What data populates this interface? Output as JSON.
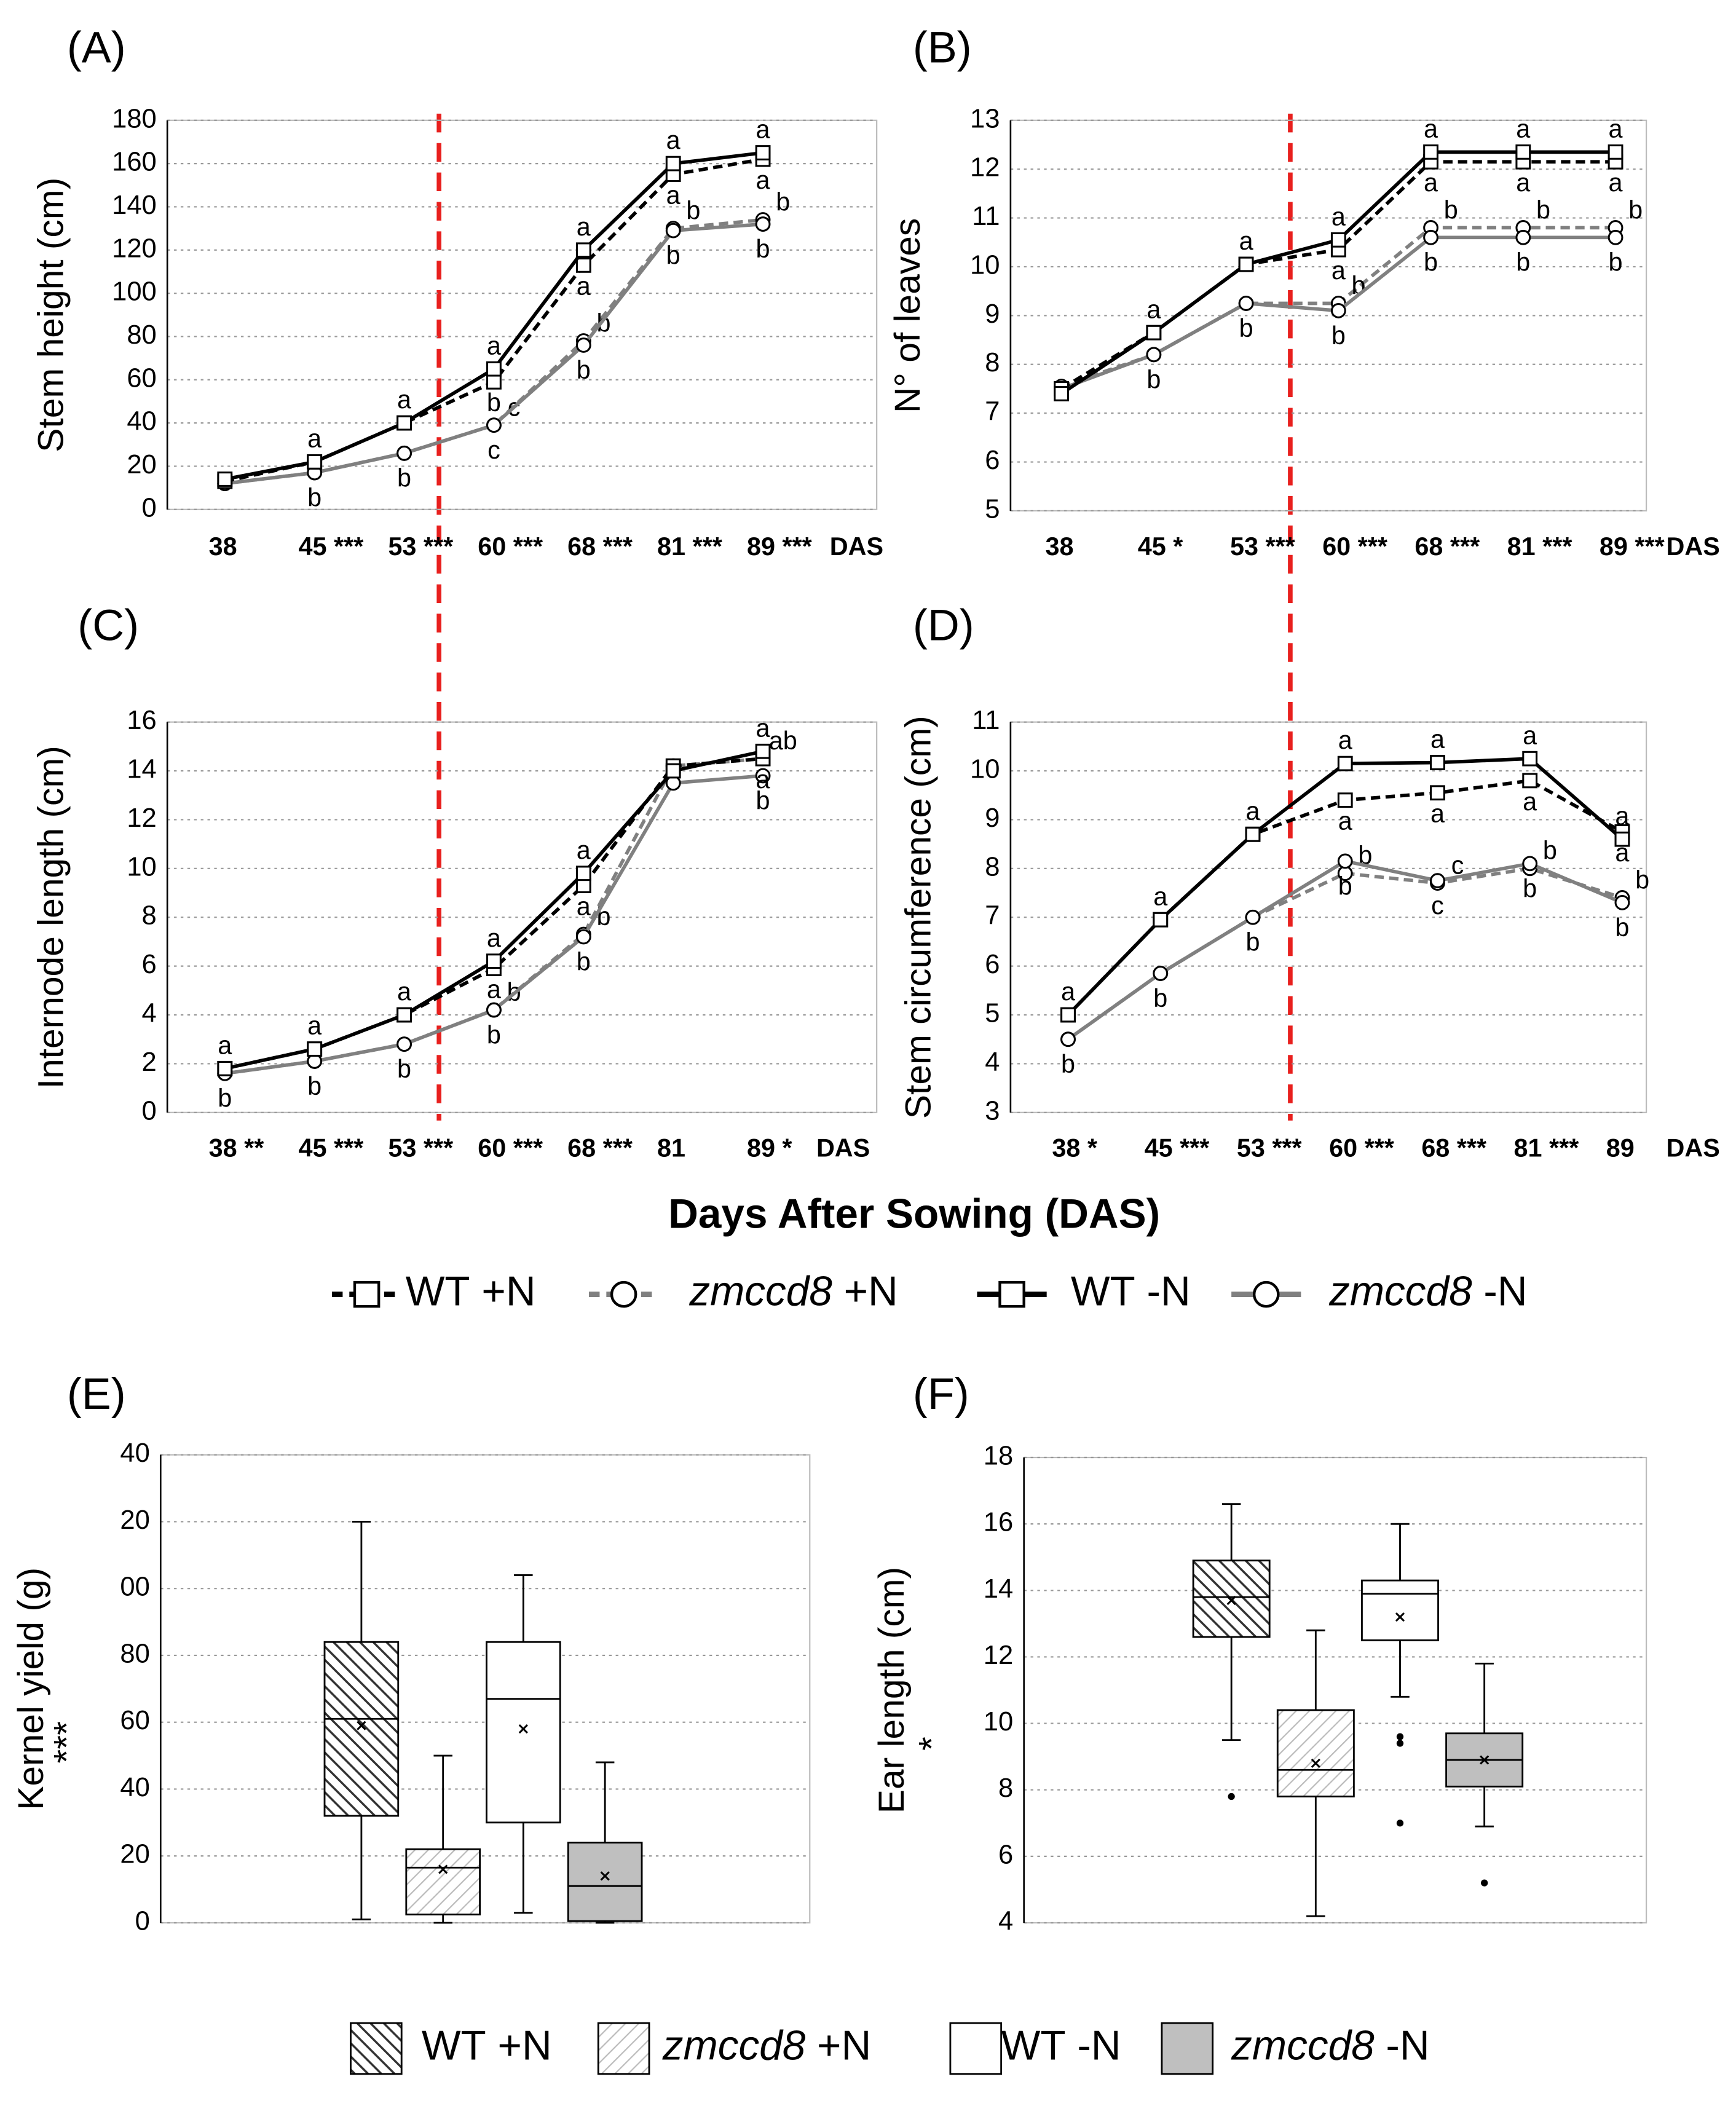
{
  "common_xlabel": "Days After Sowing (DAS)",
  "line_legend": [
    {
      "genotype": "WT",
      "treatment": "+N",
      "italic": false,
      "color": "#000000",
      "dashed": true,
      "marker": "square"
    },
    {
      "genotype": "zmccd8",
      "treatment": "+N",
      "italic": true,
      "color": "#808080",
      "dashed": true,
      "marker": "circle"
    },
    {
      "genotype": "WT",
      "treatment": "-N",
      "italic": false,
      "color": "#000000",
      "dashed": false,
      "marker": "square"
    },
    {
      "genotype": "zmccd8",
      "treatment": "-N",
      "italic": true,
      "color": "#808080",
      "dashed": false,
      "marker": "circle"
    }
  ],
  "box_legend": [
    {
      "genotype": "WT",
      "treatment": "+N",
      "italic": false,
      "fill": "hatch-dark"
    },
    {
      "genotype": "zmccd8",
      "treatment": "+N",
      "italic": true,
      "fill": "hatch-light"
    },
    {
      "genotype": "WT",
      "treatment": "-N",
      "italic": false,
      "fill": "white"
    },
    {
      "genotype": "zmccd8",
      "treatment": "-N",
      "italic": true,
      "fill": "gray"
    }
  ],
  "chart_data": [
    {
      "type": "line",
      "title": "(A)",
      "ylabel": "Stem height (cm)",
      "xlabel": "DAS",
      "categories": [
        "38",
        "45 ***",
        "53 ***",
        "60 ***",
        "68 ***",
        "81 ***",
        "89 ***"
      ],
      "ylim": [
        0,
        180
      ],
      "yticks": [
        0,
        20,
        40,
        60,
        80,
        100,
        120,
        140,
        160,
        180
      ],
      "grid": true,
      "series": [
        {
          "values": [
            13,
            22,
            40,
            59,
            113,
            155,
            162
          ],
          "letters": [
            null,
            null,
            null,
            "b",
            "a",
            "a",
            "a"
          ]
        },
        {
          "values": [
            12,
            17,
            26,
            39,
            78,
            130,
            134
          ],
          "letters": [
            null,
            null,
            null,
            "c",
            "b",
            "b",
            "b"
          ]
        },
        {
          "values": [
            14,
            22,
            40,
            65,
            120,
            160,
            165
          ],
          "letters": [
            null,
            "a",
            "a",
            "a",
            "a",
            "a",
            "a"
          ]
        },
        {
          "values": [
            12,
            17,
            26,
            39,
            76,
            129,
            132
          ],
          "letters": [
            null,
            "b",
            "b",
            "c",
            "b",
            "b",
            "b"
          ]
        }
      ]
    },
    {
      "type": "line",
      "title": "(B)",
      "ylabel": "N° of leaves",
      "xlabel": "DAS",
      "categories": [
        "38",
        "45 *",
        "53 ***",
        "60 ***",
        "68 ***",
        "81 ***",
        "89 ***"
      ],
      "ylim": [
        5,
        13
      ],
      "yticks": [
        5,
        6,
        7,
        8,
        9,
        10,
        11,
        12,
        13
      ],
      "grid": true,
      "series": [
        {
          "values": [
            7.5,
            8.65,
            10.05,
            10.35,
            12.15,
            12.15,
            12.15
          ],
          "letters": [
            null,
            null,
            null,
            "a",
            "a",
            "a",
            "a"
          ]
        },
        {
          "values": [
            7.55,
            8.2,
            9.25,
            9.25,
            10.8,
            10.8,
            10.8
          ],
          "letters": [
            null,
            null,
            null,
            "b",
            "b",
            "b",
            "b"
          ]
        },
        {
          "values": [
            7.4,
            8.65,
            10.05,
            10.55,
            12.35,
            12.35,
            12.35
          ],
          "letters": [
            null,
            "a",
            "a",
            "a",
            "a",
            "a",
            "a"
          ]
        },
        {
          "values": [
            7.5,
            8.2,
            9.25,
            9.1,
            10.6,
            10.6,
            10.6
          ],
          "letters": [
            null,
            "b",
            "b",
            "b",
            "b",
            "b",
            "b"
          ]
        }
      ]
    },
    {
      "type": "line",
      "title": "(C)",
      "ylabel": "Internode length (cm)",
      "xlabel": "DAS",
      "categories": [
        "38 **",
        "45 ***",
        "53 ***",
        "60 ***",
        "68 ***",
        "81",
        "89 *"
      ],
      "ylim": [
        0,
        16
      ],
      "yticks": [
        0,
        2,
        4,
        6,
        8,
        10,
        12,
        14,
        16
      ],
      "grid": true,
      "series": [
        {
          "values": [
            1.8,
            2.6,
            4.0,
            5.9,
            9.3,
            14.2,
            14.5
          ],
          "letters": [
            null,
            null,
            null,
            "a",
            "a",
            null,
            "a"
          ]
        },
        {
          "values": [
            1.6,
            2.1,
            2.8,
            4.2,
            7.3,
            14.2,
            14.5
          ],
          "letters": [
            null,
            null,
            null,
            "b",
            "b",
            null,
            "ab"
          ]
        },
        {
          "values": [
            1.8,
            2.6,
            4.0,
            6.2,
            9.8,
            14.0,
            14.8
          ],
          "letters": [
            "a",
            "a",
            "a",
            "a",
            "a",
            null,
            "a"
          ]
        },
        {
          "values": [
            1.6,
            2.1,
            2.8,
            4.2,
            7.2,
            13.5,
            13.8
          ],
          "letters": [
            "b",
            "b",
            "b",
            "b",
            "b",
            null,
            "b"
          ]
        }
      ]
    },
    {
      "type": "line",
      "title": "(D)",
      "ylabel": "Stem circumference (cm)",
      "xlabel": "DAS",
      "categories": [
        "38 *",
        "45 ***",
        "53 ***",
        "60 ***",
        "68 ***",
        "81 ***",
        "89"
      ],
      "ylim": [
        3,
        11
      ],
      "yticks": [
        3,
        4,
        5,
        6,
        7,
        8,
        9,
        10,
        11
      ],
      "grid": true,
      "series": [
        {
          "values": [
            5.0,
            6.95,
            8.7,
            9.4,
            9.55,
            9.8,
            8.75
          ],
          "letters": [
            null,
            null,
            null,
            "a",
            "a",
            "a",
            "a"
          ]
        },
        {
          "values": [
            4.5,
            5.85,
            7.0,
            7.9,
            7.7,
            8.0,
            7.4
          ],
          "letters": [
            null,
            null,
            null,
            "b",
            "c",
            "b",
            "b"
          ]
        },
        {
          "values": [
            5.0,
            6.95,
            8.7,
            10.15,
            10.17,
            10.25,
            8.6
          ],
          "letters": [
            "a",
            "a",
            "a",
            "a",
            "a",
            "a",
            "a"
          ]
        },
        {
          "values": [
            4.5,
            5.85,
            7.0,
            8.15,
            7.75,
            8.1,
            7.3
          ],
          "letters": [
            "b",
            "b",
            "b",
            "b",
            "c",
            "b",
            "b"
          ]
        }
      ]
    },
    {
      "type": "box",
      "title": "(E)",
      "ylabel": "Kernel yield (g)",
      "significance": "***",
      "ylim": [
        0,
        140
      ],
      "yticks": [
        0,
        20,
        40,
        60,
        80,
        {
          "value": 100,
          "label": "00"
        },
        {
          "value": 120,
          "label": "20"
        },
        {
          "value": 140,
          "label": "40"
        }
      ],
      "grid": true,
      "series": [
        {
          "min": 1,
          "q1": 32,
          "median": 61,
          "q3": 84,
          "max": 120,
          "mean": 59,
          "outliers": []
        },
        {
          "min": 0,
          "q1": 2.5,
          "median": 16.5,
          "q3": 22,
          "max": 50,
          "mean": 16,
          "outliers": []
        },
        {
          "min": 3,
          "q1": 30,
          "median": 67,
          "q3": 84,
          "max": 104,
          "mean": 58,
          "outliers": []
        },
        {
          "min": 0,
          "q1": 0.5,
          "median": 11,
          "q3": 24,
          "max": 48,
          "mean": 14,
          "outliers": []
        }
      ]
    },
    {
      "type": "box",
      "title": "(F)",
      "ylabel": "Ear length (cm)",
      "significance": "*",
      "ylim": [
        4,
        18
      ],
      "yticks": [
        4,
        6,
        8,
        10,
        12,
        14,
        16,
        18
      ],
      "grid": true,
      "series": [
        {
          "min": 9.5,
          "q1": 12.6,
          "median": 13.8,
          "q3": 14.9,
          "max": 16.6,
          "mean": 13.7,
          "outliers": [
            7.8
          ]
        },
        {
          "min": 4.2,
          "q1": 7.8,
          "median": 8.6,
          "q3": 10.4,
          "max": 12.8,
          "mean": 8.8,
          "outliers": []
        },
        {
          "min": 10.8,
          "q1": 12.5,
          "median": 13.9,
          "q3": 14.3,
          "max": 16.0,
          "mean": 13.2,
          "outliers": [
            9.6,
            9.4,
            7.0
          ]
        },
        {
          "min": 6.9,
          "q1": 8.1,
          "median": 8.9,
          "q3": 9.7,
          "max": 11.8,
          "mean": 8.9,
          "outliers": [
            5.2
          ]
        }
      ]
    }
  ]
}
